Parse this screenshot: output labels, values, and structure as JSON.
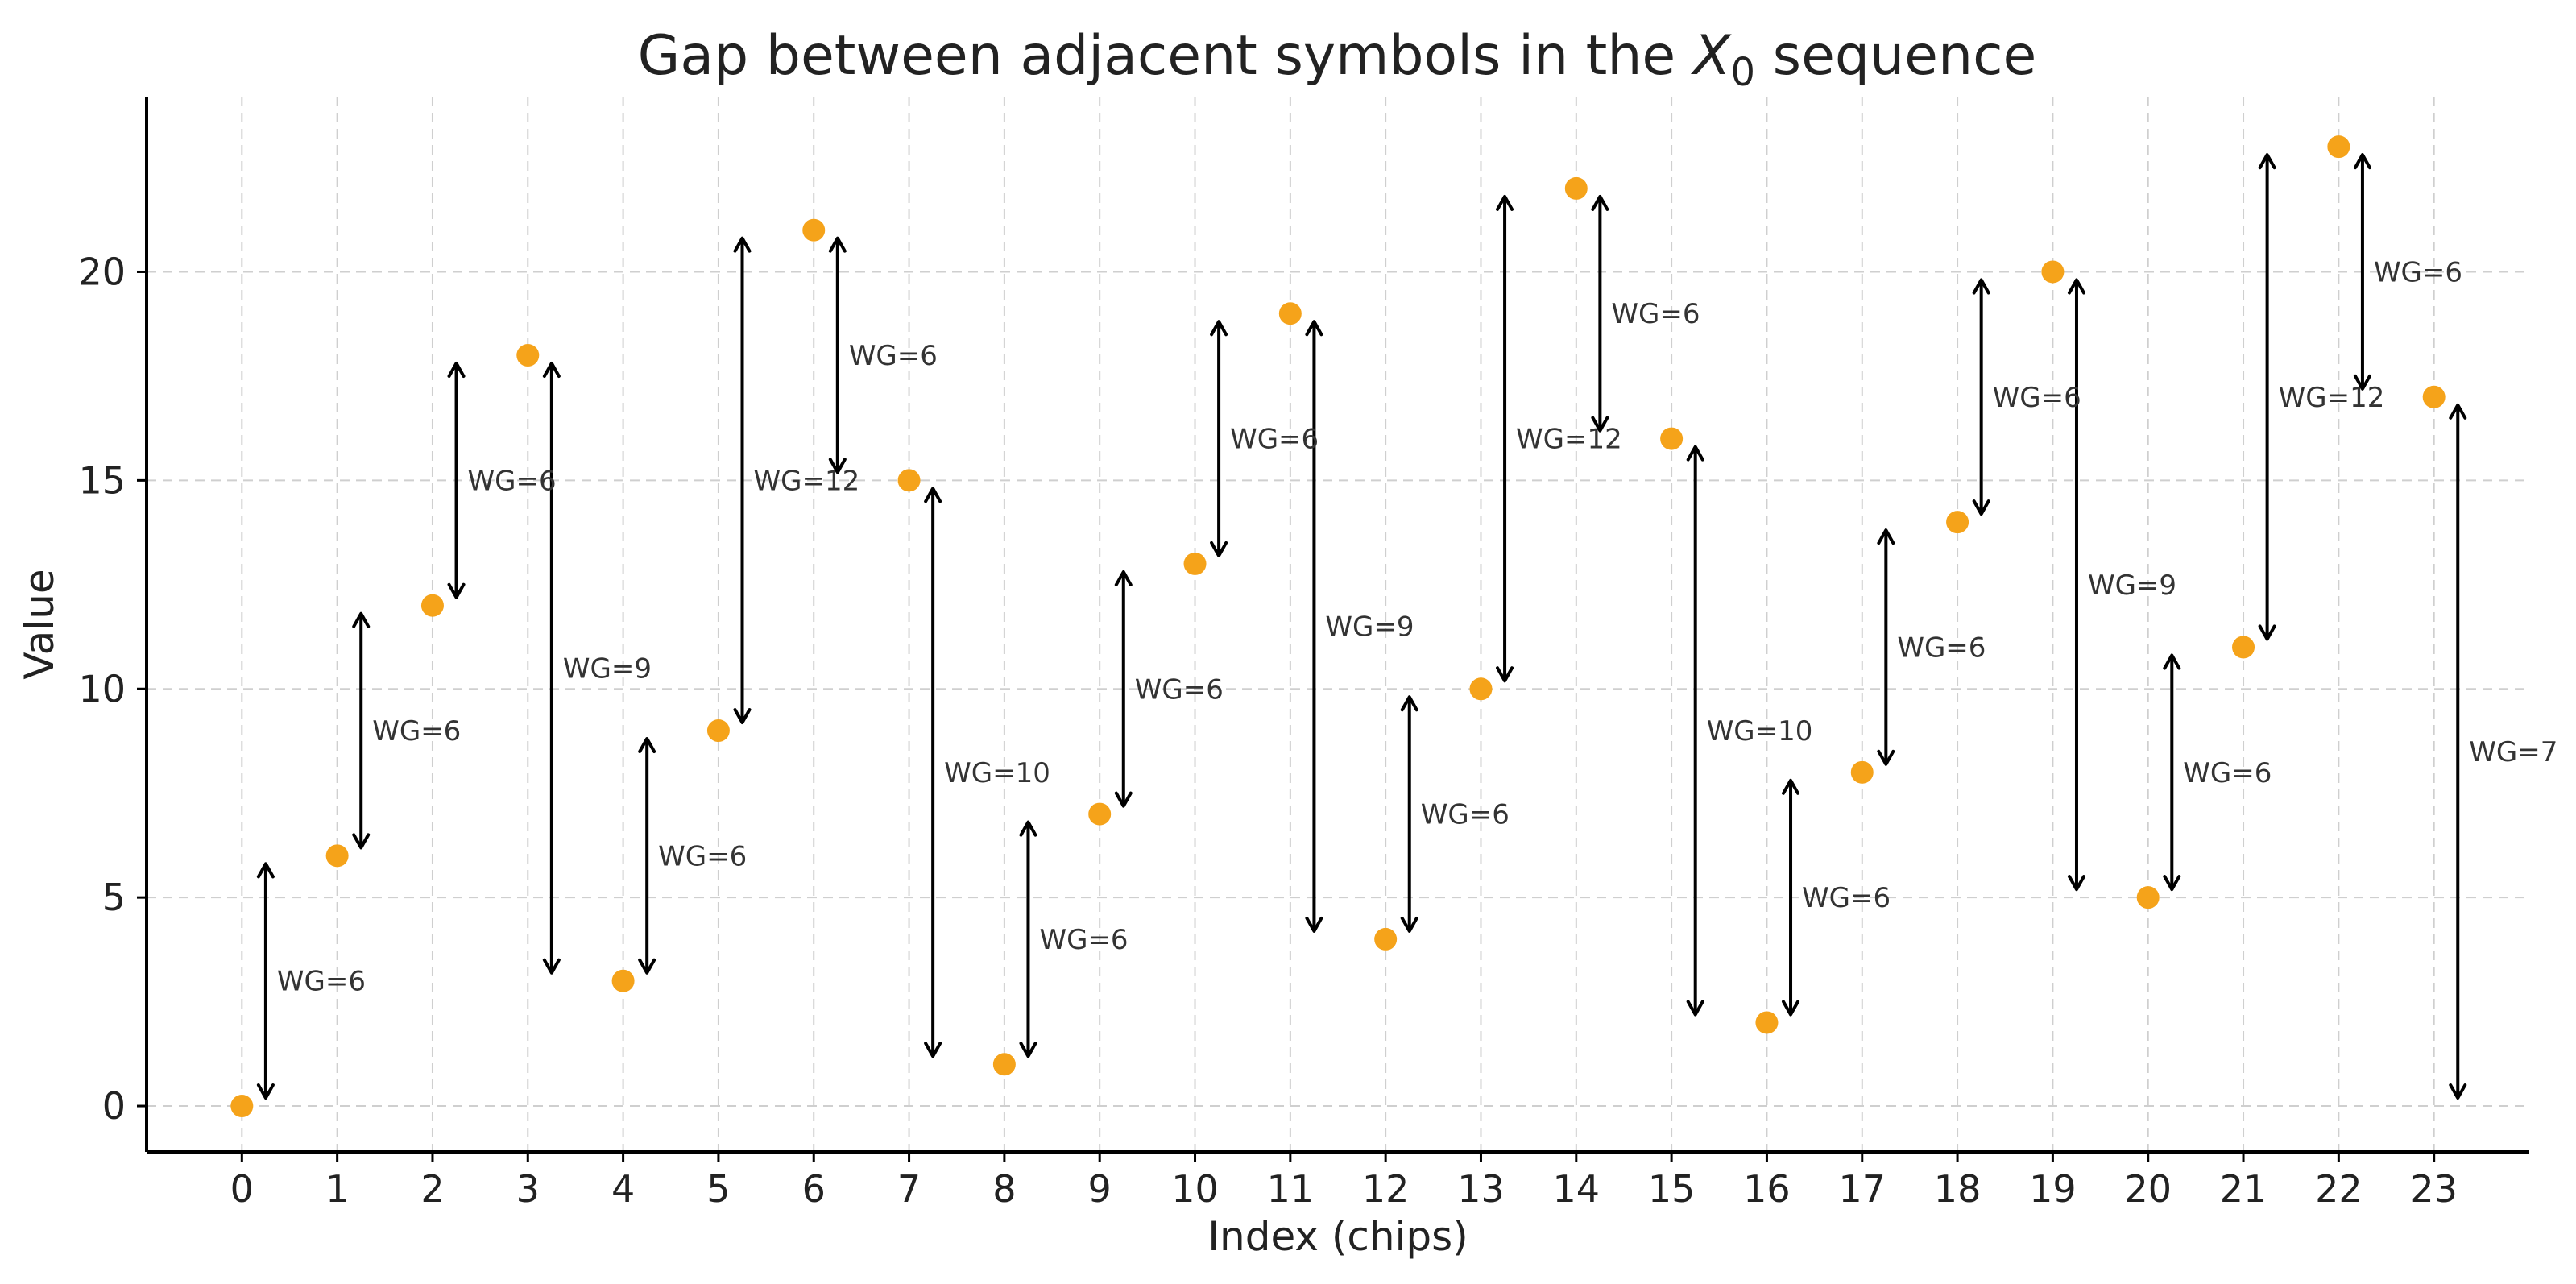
{
  "chart_data": {
    "type": "scatter",
    "title_main": "Gap between adjacent symbols in the ",
    "title_symbol": "X",
    "title_sub": "0",
    "title_tail": " sequence",
    "xlabel": "Index (chips)",
    "ylabel": "Value",
    "xlim": [
      -1,
      24
    ],
    "ylim": [
      -1.1,
      24.2
    ],
    "xticks": [
      0,
      1,
      2,
      3,
      4,
      5,
      6,
      7,
      8,
      9,
      10,
      11,
      12,
      13,
      14,
      15,
      16,
      17,
      18,
      19,
      20,
      21,
      22,
      23
    ],
    "yticks": [
      0,
      5,
      10,
      15,
      20
    ],
    "grid": true,
    "point_color": "#f5a31a",
    "x": [
      0,
      1,
      2,
      3,
      4,
      5,
      6,
      7,
      8,
      9,
      10,
      11,
      12,
      13,
      14,
      15,
      16,
      17,
      18,
      19,
      20,
      21,
      22,
      23
    ],
    "y": [
      0,
      6,
      12,
      18,
      3,
      9,
      21,
      15,
      1,
      7,
      13,
      19,
      4,
      10,
      22,
      16,
      2,
      8,
      14,
      20,
      5,
      11,
      23,
      17
    ],
    "gaps": [
      {
        "x": 0.25,
        "y_start": 0,
        "y_end": 6,
        "label": "WG=6"
      },
      {
        "x": 1.25,
        "y_start": 6,
        "y_end": 12,
        "label": "WG=6"
      },
      {
        "x": 2.25,
        "y_start": 12,
        "y_end": 18,
        "label": "WG=6"
      },
      {
        "x": 3.25,
        "y_start": 3,
        "y_end": 18,
        "label": "WG=9"
      },
      {
        "x": 4.25,
        "y_start": 3,
        "y_end": 9,
        "label": "WG=6"
      },
      {
        "x": 5.25,
        "y_start": 9,
        "y_end": 21,
        "label": "WG=12"
      },
      {
        "x": 6.25,
        "y_start": 15,
        "y_end": 21,
        "label": "WG=6"
      },
      {
        "x": 7.25,
        "y_start": 1,
        "y_end": 15,
        "label": "WG=10"
      },
      {
        "x": 8.25,
        "y_start": 1,
        "y_end": 7,
        "label": "WG=6"
      },
      {
        "x": 9.25,
        "y_start": 7,
        "y_end": 13,
        "label": "WG=6"
      },
      {
        "x": 10.25,
        "y_start": 13,
        "y_end": 19,
        "label": "WG=6"
      },
      {
        "x": 11.25,
        "y_start": 4,
        "y_end": 19,
        "label": "WG=9"
      },
      {
        "x": 12.25,
        "y_start": 4,
        "y_end": 10,
        "label": "WG=6"
      },
      {
        "x": 13.25,
        "y_start": 10,
        "y_end": 22,
        "label": "WG=12"
      },
      {
        "x": 14.25,
        "y_start": 16,
        "y_end": 22,
        "label": "WG=6"
      },
      {
        "x": 15.25,
        "y_start": 2,
        "y_end": 16,
        "label": "WG=10"
      },
      {
        "x": 16.25,
        "y_start": 2,
        "y_end": 8,
        "label": "WG=6"
      },
      {
        "x": 17.25,
        "y_start": 8,
        "y_end": 14,
        "label": "WG=6"
      },
      {
        "x": 18.25,
        "y_start": 14,
        "y_end": 20,
        "label": "WG=6"
      },
      {
        "x": 19.25,
        "y_start": 5,
        "y_end": 20,
        "label": "WG=9"
      },
      {
        "x": 20.25,
        "y_start": 5,
        "y_end": 11,
        "label": "WG=6"
      },
      {
        "x": 21.25,
        "y_start": 11,
        "y_end": 23,
        "label": "WG=12"
      },
      {
        "x": 22.25,
        "y_start": 17,
        "y_end": 23,
        "label": "WG=6"
      },
      {
        "x": 23.25,
        "y_start": 0,
        "y_end": 17,
        "label": "WG=7"
      }
    ]
  }
}
